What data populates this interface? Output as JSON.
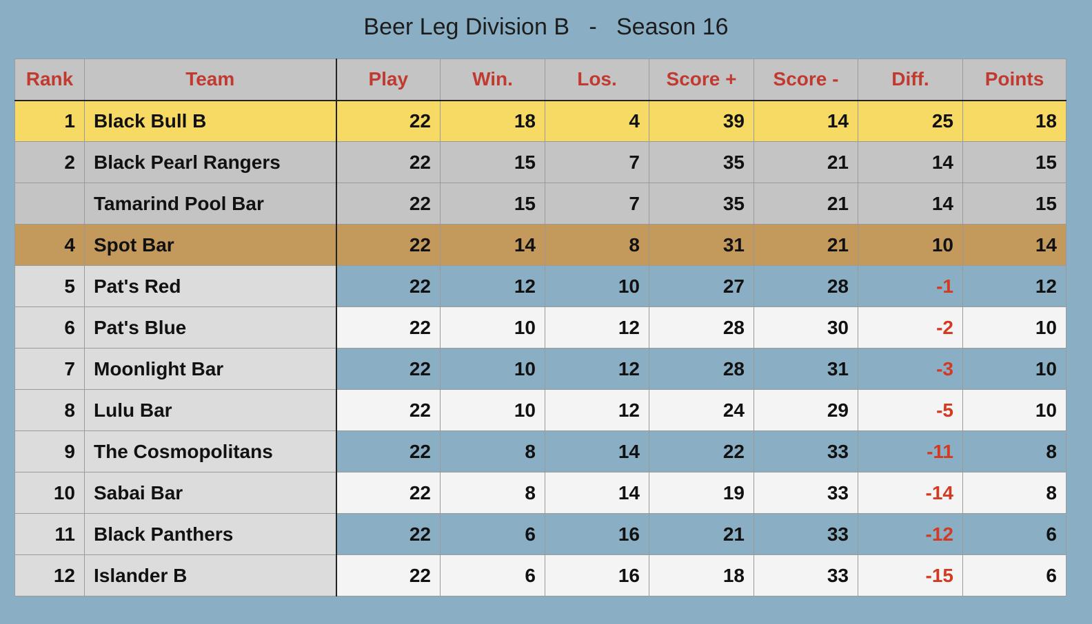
{
  "title": "Beer Leg Division B   -   Season 16",
  "columns": [
    "Rank",
    "Team",
    "Play",
    "Win.",
    "Los.",
    "Score +",
    "Score -",
    "Diff.",
    "Points"
  ],
  "rows": [
    {
      "rank": "1",
      "team": "Black Bull B",
      "play": "22",
      "win": "18",
      "los": "4",
      "score_plus": "39",
      "score_minus": "14",
      "diff": "25",
      "points": "18"
    },
    {
      "rank": "2",
      "team": "Black Pearl Rangers",
      "play": "22",
      "win": "15",
      "los": "7",
      "score_plus": "35",
      "score_minus": "21",
      "diff": "14",
      "points": "15"
    },
    {
      "rank": "",
      "team": "Tamarind Pool Bar",
      "play": "22",
      "win": "15",
      "los": "7",
      "score_plus": "35",
      "score_minus": "21",
      "diff": "14",
      "points": "15"
    },
    {
      "rank": "4",
      "team": "Spot Bar",
      "play": "22",
      "win": "14",
      "los": "8",
      "score_plus": "31",
      "score_minus": "21",
      "diff": "10",
      "points": "14"
    },
    {
      "rank": "5",
      "team": "Pat's Red",
      "play": "22",
      "win": "12",
      "los": "10",
      "score_plus": "27",
      "score_minus": "28",
      "diff": "-1",
      "points": "12"
    },
    {
      "rank": "6",
      "team": "Pat's Blue",
      "play": "22",
      "win": "10",
      "los": "12",
      "score_plus": "28",
      "score_minus": "30",
      "diff": "-2",
      "points": "10"
    },
    {
      "rank": "7",
      "team": "Moonlight Bar",
      "play": "22",
      "win": "10",
      "los": "12",
      "score_plus": "28",
      "score_minus": "31",
      "diff": "-3",
      "points": "10"
    },
    {
      "rank": "8",
      "team": "Lulu Bar",
      "play": "22",
      "win": "10",
      "los": "12",
      "score_plus": "24",
      "score_minus": "29",
      "diff": "-5",
      "points": "10"
    },
    {
      "rank": "9",
      "team": "The Cosmopolitans",
      "play": "22",
      "win": "8",
      "los": "14",
      "score_plus": "22",
      "score_minus": "33",
      "diff": "-11",
      "points": "8"
    },
    {
      "rank": "10",
      "team": "Sabai Bar",
      "play": "22",
      "win": "8",
      "los": "14",
      "score_plus": "19",
      "score_minus": "33",
      "diff": "-14",
      "points": "8"
    },
    {
      "rank": "11",
      "team": "Black Panthers",
      "play": "22",
      "win": "6",
      "los": "16",
      "score_plus": "21",
      "score_minus": "33",
      "diff": "-12",
      "points": "6"
    },
    {
      "rank": "12",
      "team": "Islander B",
      "play": "22",
      "win": "6",
      "los": "16",
      "score_plus": "18",
      "score_minus": "33",
      "diff": "-15",
      "points": "6"
    }
  ],
  "colors": {
    "background": "#8aafc4",
    "header_text": "#c13a30",
    "negative_diff": "#d23a22",
    "first_place": "#f7da63",
    "second_place": "#c4c4c4",
    "fourth_place": "#c39a5c"
  }
}
